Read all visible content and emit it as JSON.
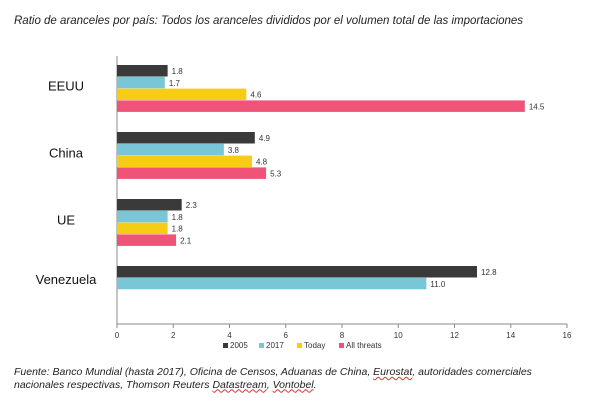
{
  "title": "Ratio de aranceles por país: Todos los aranceles divididos por el volumen total de las importaciones",
  "source": {
    "prefix": "Fuente: Banco Mundial (hasta 2017), Oficina de Censos, Aduanas de China, ",
    "eurostat": "Eurostat",
    "middle": ", autoridades comerciales nacionales respectivas, Thomson Reuters ",
    "datastream": "Datastream",
    "sep": ", ",
    "vontobel": "Vontobel",
    "end": "."
  },
  "chart_data": {
    "type": "bar",
    "orientation": "horizontal",
    "title": "Ratio de aranceles por país: Todos los aranceles divididos por el volumen total de las importaciones",
    "categories": [
      "EEUU",
      "China",
      "UE",
      "Venezuela"
    ],
    "series": [
      {
        "name": "2005",
        "color": "#3a3a3a",
        "values": [
          1.8,
          4.9,
          2.3,
          12.8
        ],
        "labels": [
          "1.8",
          "4.9",
          "2.3",
          "12.8"
        ]
      },
      {
        "name": "2017",
        "color": "#79c6d6",
        "values": [
          1.7,
          3.8,
          1.8,
          11.0
        ],
        "labels": [
          "1.7",
          "3.8",
          "1.8",
          "11.0"
        ]
      },
      {
        "name": "Today",
        "color": "#f6cc14",
        "values": [
          4.6,
          4.8,
          1.8,
          null
        ],
        "labels": [
          "4.6",
          "4.8",
          "1.8",
          ""
        ]
      },
      {
        "name": "All threats",
        "color": "#ef5378",
        "values": [
          14.5,
          5.3,
          2.1,
          null
        ],
        "labels": [
          "14.5",
          "5.3",
          "2.1",
          ""
        ]
      }
    ],
    "xlim": [
      0,
      16
    ],
    "ticks": [
      "0",
      "2",
      "4",
      "6",
      "8",
      "10",
      "12",
      "14",
      "16"
    ],
    "grid": false,
    "legend": "bottom"
  }
}
